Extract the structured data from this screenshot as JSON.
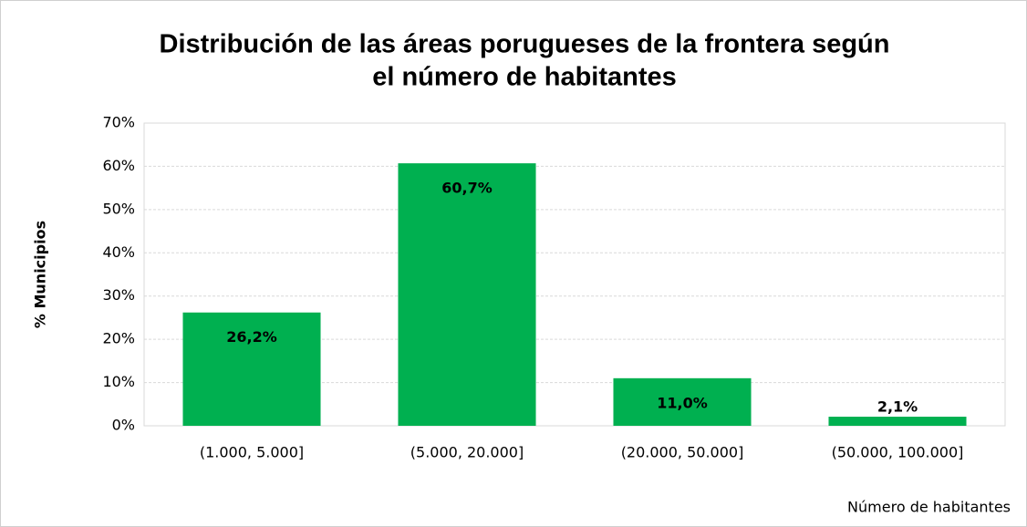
{
  "chart_data": {
    "type": "bar",
    "title": [
      "Distribución de las áreas porugueses de la frontera según",
      "el número de habitantes"
    ],
    "x_label": "Número de habitantes",
    "y_label": "% Municipios",
    "categories": [
      "(1.000, 5.000]",
      "(5.000, 20.000]",
      "(20.000, 50.000]",
      "(50.000, 100.000]"
    ],
    "values": [
      26.2,
      60.7,
      11.0,
      2.1
    ],
    "value_labels": [
      "26,2%",
      "60,7%",
      "11,0%",
      "2,1%"
    ],
    "color": "#00b050",
    "ylim": [
      0,
      70
    ],
    "yticks": [
      {
        "value": 0,
        "label": "0%"
      },
      {
        "value": 10,
        "label": "10%"
      },
      {
        "value": 20,
        "label": "20%"
      },
      {
        "value": 30,
        "label": "30%"
      },
      {
        "value": 40,
        "label": "40%"
      },
      {
        "value": 50,
        "label": "50%"
      },
      {
        "value": 60,
        "label": "60%"
      },
      {
        "value": 70,
        "label": "70%"
      }
    ],
    "grid": true
  }
}
